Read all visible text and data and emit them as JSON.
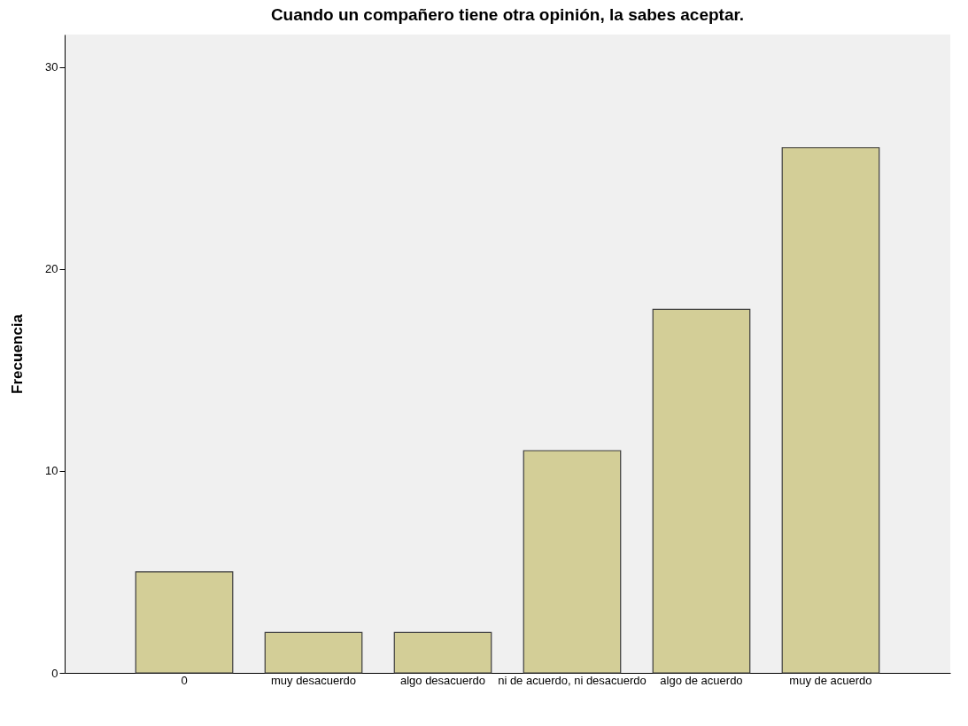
{
  "chart_data": {
    "type": "bar",
    "title": "Cuando un compañero tiene otra opinión, la sabes aceptar.",
    "ylabel": "Frecuencia",
    "categories": [
      "0",
      "muy desacuerdo",
      "algo desacuerdo",
      "ni de acuerdo, ni desacuerdo",
      "algo de acuerdo",
      "muy de acuerdo"
    ],
    "values": [
      5,
      2,
      2,
      11,
      18,
      26
    ],
    "color": "#d3ce97",
    "ylim": [
      0,
      31.6
    ],
    "yticks": [
      0,
      10,
      20,
      30
    ],
    "grid": false
  }
}
